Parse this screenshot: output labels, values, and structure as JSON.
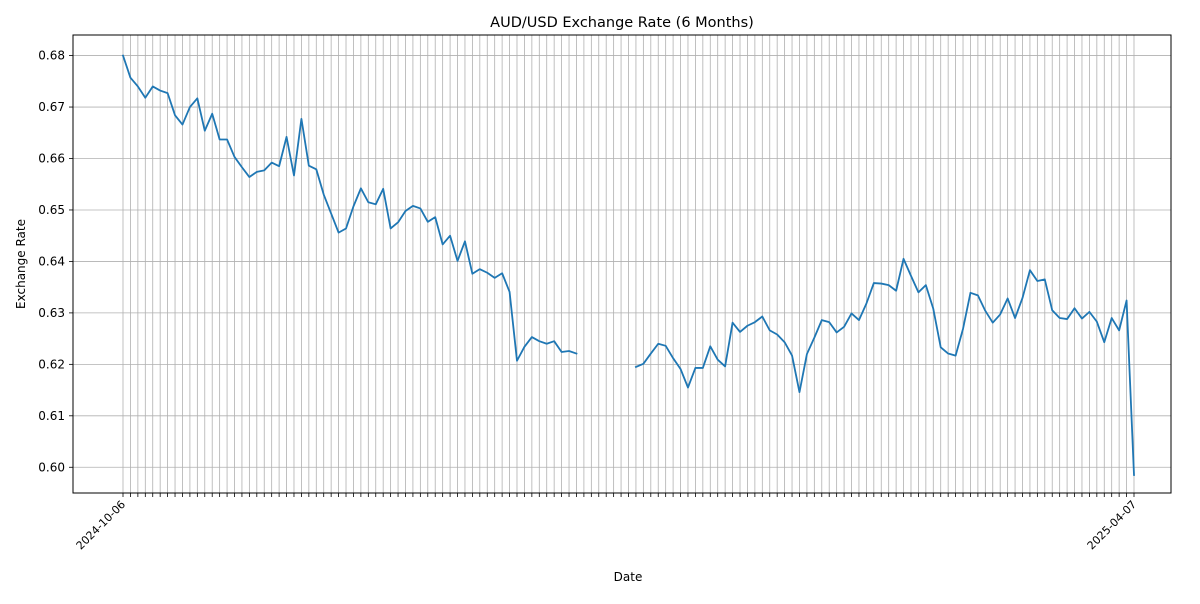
{
  "chart_data": {
    "type": "line",
    "title": "AUD/USD Exchange Rate (6 Months)",
    "xlabel": "Date",
    "ylabel": "Exchange Rate",
    "ylim": [
      0.595,
      0.684
    ],
    "yticks": [
      "0.60",
      "0.61",
      "0.62",
      "0.63",
      "0.64",
      "0.65",
      "0.66",
      "0.67",
      "0.68"
    ],
    "ytick_values": [
      0.6,
      0.61,
      0.62,
      0.63,
      0.64,
      0.65,
      0.66,
      0.67,
      0.68
    ],
    "grid": true,
    "line_color": "#1f77b4",
    "x_first": "2024-10-06",
    "x_last": "2025-04-07",
    "series": [
      {
        "values": [
          0.68,
          0.6757,
          0.674,
          0.6718,
          0.674,
          0.6732,
          0.6727,
          0.6684,
          0.6666,
          0.67,
          0.6717,
          0.6654,
          0.6687,
          0.6637,
          0.6637,
          0.6603,
          0.6583,
          0.6564,
          0.6574,
          0.6577,
          0.6592,
          0.6585,
          0.6642,
          0.6567,
          0.6677,
          0.6586,
          0.6579,
          0.653,
          0.6493,
          0.6456,
          0.6464,
          0.6507,
          0.6542,
          0.6515,
          0.6511,
          0.6541,
          0.6464,
          0.6476,
          0.6498,
          0.6508,
          0.6503,
          0.6477,
          0.6486,
          0.6433,
          0.645,
          0.6401,
          0.6439,
          0.6376,
          0.6385,
          0.6378,
          0.6368,
          0.6377,
          0.6341,
          0.6207,
          0.6234,
          0.6253,
          0.6245,
          0.624,
          0.6245,
          0.6224,
          0.6226,
          0.6221,
          null,
          null,
          null,
          null,
          null,
          null,
          null,
          0.6195,
          0.6201,
          0.6221,
          0.624,
          0.6236,
          0.6212,
          0.6191,
          0.6155,
          0.6193,
          0.6193,
          0.6235,
          0.6209,
          0.6196,
          0.6281,
          0.6263,
          0.6275,
          0.6282,
          0.6293,
          0.6266,
          0.6258,
          0.6243,
          0.6217,
          0.6146,
          0.622,
          0.6252,
          0.6286,
          0.6282,
          0.6262,
          0.6273,
          0.6299,
          0.6286,
          0.6318,
          0.6358,
          0.6357,
          0.6354,
          0.6343,
          0.6405,
          0.6372,
          0.634,
          0.6354,
          0.6308,
          0.6233,
          0.6221,
          0.6217,
          0.6269,
          0.6339,
          0.6334,
          0.6304,
          0.6281,
          0.6297,
          0.6328,
          0.629,
          0.6329,
          0.6383,
          0.6362,
          0.6365,
          0.6305,
          0.629,
          0.6288,
          0.6309,
          0.6289,
          0.6302,
          0.6283,
          0.6243,
          0.629,
          0.6266,
          0.6324,
          0.5985
        ]
      }
    ]
  }
}
